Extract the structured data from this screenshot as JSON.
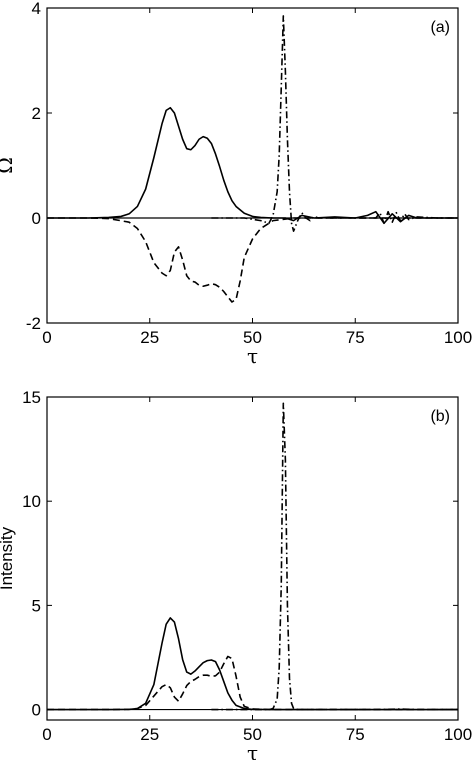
{
  "chart_data": [
    {
      "type": "line",
      "panel_label": "(a)",
      "xlabel": "τ",
      "ylabel": "Ω",
      "xlim": [
        0,
        100
      ],
      "ylim": [
        -2,
        4
      ],
      "xticks": [
        0,
        25,
        50,
        75,
        100
      ],
      "yticks": [
        -2,
        0,
        2,
        4
      ],
      "series": [
        {
          "style": "solid",
          "x": [
            0,
            10,
            15,
            18,
            20,
            22,
            24,
            26,
            28,
            29,
            30,
            31,
            32,
            33,
            34,
            35,
            36,
            37,
            38,
            39,
            40,
            41,
            42,
            43,
            44,
            45,
            46,
            48,
            50,
            52,
            55,
            58,
            60,
            62,
            65,
            70,
            75,
            78,
            80,
            82,
            84,
            86,
            88,
            90,
            95,
            100
          ],
          "y": [
            0,
            0,
            0.01,
            0.03,
            0.08,
            0.22,
            0.55,
            1.15,
            1.8,
            2.05,
            2.1,
            2.0,
            1.75,
            1.5,
            1.32,
            1.3,
            1.38,
            1.5,
            1.55,
            1.52,
            1.42,
            1.22,
            0.98,
            0.72,
            0.5,
            0.33,
            0.22,
            0.09,
            0.03,
            0.01,
            0,
            0,
            -0.05,
            0.05,
            0,
            0.02,
            0,
            0.05,
            0.12,
            -0.1,
            0.08,
            -0.07,
            0.05,
            0,
            0,
            0
          ]
        },
        {
          "style": "dashed",
          "x": [
            0,
            10,
            15,
            20,
            22,
            24,
            26,
            28,
            29,
            30,
            31,
            32,
            33,
            34,
            35,
            36,
            37,
            38,
            39,
            40,
            41,
            42,
            43,
            44,
            45,
            46,
            47,
            48,
            50,
            52,
            55,
            60,
            65,
            70,
            80,
            90,
            100
          ],
          "y": [
            0,
            0,
            -0.01,
            -0.08,
            -0.2,
            -0.45,
            -0.85,
            -1.05,
            -1.1,
            -1.0,
            -0.65,
            -0.55,
            -0.8,
            -1.1,
            -1.2,
            -1.22,
            -1.28,
            -1.3,
            -1.28,
            -1.25,
            -1.27,
            -1.32,
            -1.4,
            -1.5,
            -1.6,
            -1.55,
            -1.2,
            -0.75,
            -0.4,
            -0.2,
            -0.05,
            0,
            0,
            0,
            0,
            0,
            0
          ]
        },
        {
          "style": "dash-dot",
          "x": [
            40,
            48,
            52,
            54,
            55,
            56,
            56.5,
            57,
            57.5,
            58,
            58.5,
            59,
            59.5,
            60,
            61,
            62,
            63,
            64,
            65,
            66,
            68,
            70,
            75,
            80,
            81,
            82,
            83,
            84,
            85,
            86,
            87,
            88,
            90,
            95,
            100
          ],
          "y": [
            0,
            0,
            -0.05,
            -0.1,
            0.05,
            0.5,
            1.2,
            2.5,
            3.85,
            2.8,
            1.5,
            0.5,
            -0.1,
            -0.25,
            -0.05,
            0.1,
            0,
            -0.05,
            0.03,
            0,
            0,
            0,
            0,
            0,
            0.1,
            -0.1,
            0.12,
            -0.08,
            0.1,
            -0.06,
            0.08,
            -0.03,
            0.02,
            0,
            0
          ]
        }
      ]
    },
    {
      "type": "line",
      "panel_label": "(b)",
      "xlabel": "τ",
      "ylabel": "Intensity",
      "xlim": [
        0,
        100
      ],
      "ylim": [
        -0.5,
        15
      ],
      "xticks": [
        0,
        25,
        50,
        75,
        100
      ],
      "yticks": [
        0,
        5,
        10,
        15
      ],
      "series": [
        {
          "style": "solid",
          "x": [
            0,
            15,
            20,
            22,
            24,
            26,
            27,
            28,
            29,
            30,
            31,
            32,
            33,
            34,
            35,
            36,
            37,
            38,
            39,
            40,
            41,
            42,
            43,
            44,
            45,
            46,
            48,
            50,
            55,
            60,
            80,
            100
          ],
          "y": [
            0,
            0,
            0.01,
            0.05,
            0.3,
            1.2,
            2.2,
            3.2,
            4.1,
            4.4,
            4.2,
            3.4,
            2.4,
            1.8,
            1.7,
            1.85,
            2.05,
            2.25,
            2.35,
            2.38,
            2.3,
            1.9,
            1.35,
            0.8,
            0.45,
            0.2,
            0.05,
            0.01,
            0,
            0,
            0,
            0
          ]
        },
        {
          "style": "dashed",
          "x": [
            0,
            15,
            20,
            22,
            24,
            26,
            28,
            29,
            30,
            31,
            32,
            33,
            34,
            35,
            36,
            37,
            38,
            39,
            40,
            41,
            42,
            43,
            44,
            45,
            46,
            47,
            48,
            50,
            55,
            60,
            100
          ],
          "y": [
            0,
            0,
            0.01,
            0.05,
            0.2,
            0.65,
            1.1,
            1.2,
            1.05,
            0.6,
            0.4,
            0.75,
            1.15,
            1.35,
            1.45,
            1.58,
            1.65,
            1.65,
            1.6,
            1.62,
            1.8,
            2.2,
            2.55,
            2.45,
            1.6,
            0.6,
            0.15,
            0.03,
            0,
            0,
            0
          ]
        },
        {
          "style": "dash-dot",
          "x": [
            40,
            54,
            55,
            56,
            56.5,
            57,
            57.5,
            58,
            58.5,
            59,
            59.5,
            60,
            61,
            63,
            70,
            80,
            85,
            86,
            87,
            90,
            100
          ],
          "y": [
            0,
            0,
            0.05,
            0.5,
            2.0,
            6.0,
            14.7,
            12.0,
            5.0,
            1.5,
            0.3,
            0.05,
            0,
            0,
            0,
            0,
            0.02,
            0.03,
            0.02,
            0,
            0
          ]
        }
      ]
    }
  ]
}
